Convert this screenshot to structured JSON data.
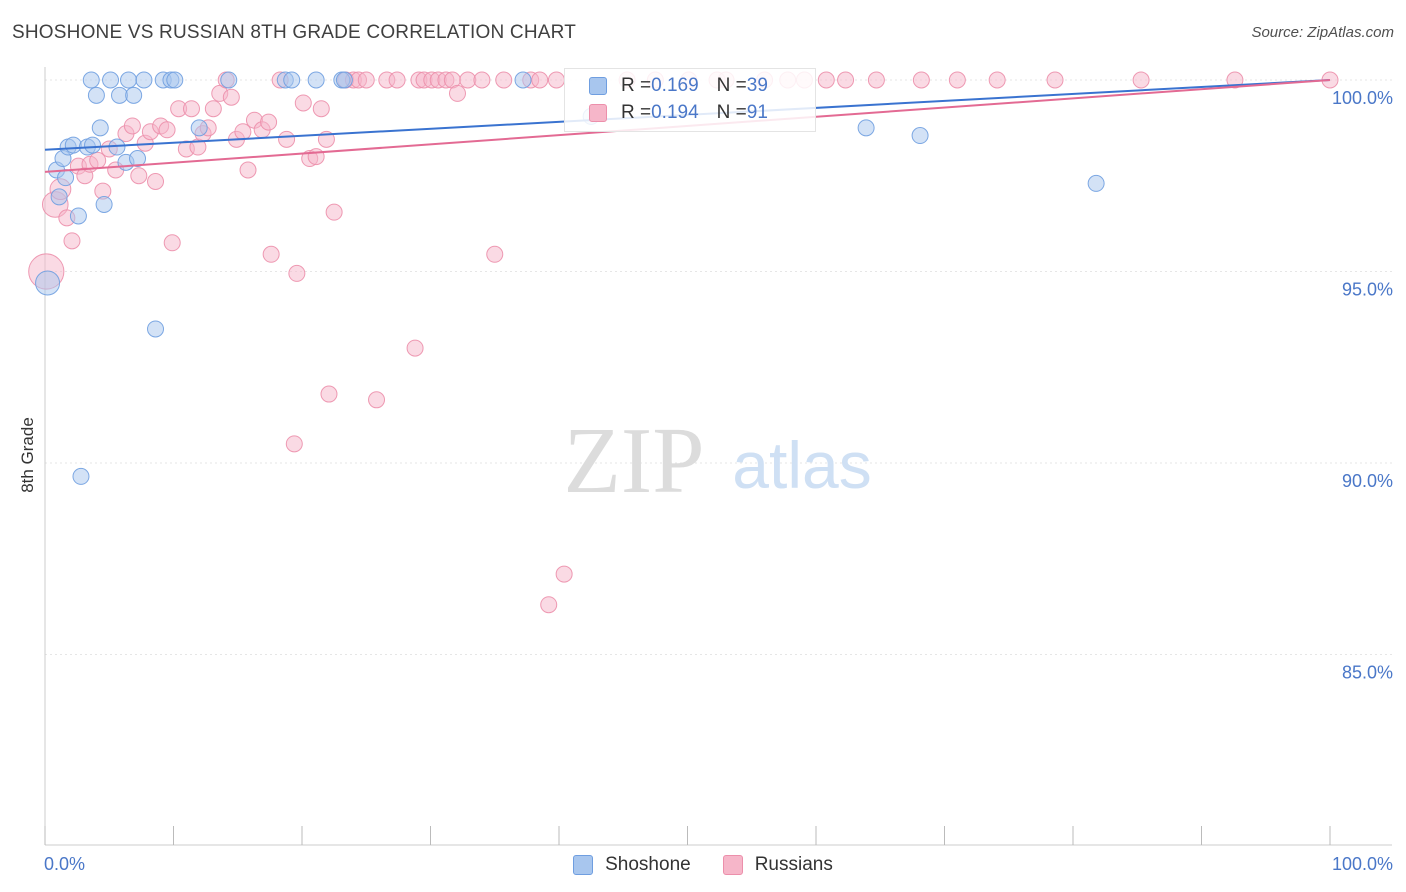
{
  "header": {
    "title": "SHOSHONE VS RUSSIAN 8TH GRADE CORRELATION CHART",
    "source": "Source: ZipAtlas.com"
  },
  "watermark": {
    "zip": "ZIP",
    "atlas": "atlas"
  },
  "colors": {
    "shoshone_fill": "#a8c6ee",
    "shoshone_stroke": "#6f9ee0",
    "shoshone_line": "#3a73d0",
    "russians_fill": "#f6b6c9",
    "russians_stroke": "#ec8fab",
    "russians_line": "#e36a93",
    "grid": "#e6e6e6",
    "axis_label": "#4a77c8"
  },
  "legend": {
    "rows": [
      {
        "r_label": "R = ",
        "r_value": "0.169",
        "n_label": "N = ",
        "n_value": "39"
      },
      {
        "r_label": "R = ",
        "r_value": "0.194",
        "n_label": "N = ",
        "n_value": "91"
      }
    ]
  },
  "bottom_legend": {
    "items": [
      "Shoshone",
      "Russians"
    ]
  },
  "chart_data": {
    "type": "scatter",
    "title": "SHOSHONE VS RUSSIAN 8TH GRADE CORRELATION CHART",
    "xlabel": "",
    "ylabel": "8th Grade",
    "xlim": [
      0,
      100
    ],
    "ylim": [
      80.5,
      100.8
    ],
    "x_tick_labels": [
      "0.0%",
      "100.0%"
    ],
    "y_ticks": [
      100,
      95,
      90,
      85
    ],
    "y_tick_labels": [
      "100.0%",
      "95.0%",
      "90.0%",
      "85.0%"
    ],
    "series": [
      {
        "name": "Shoshone",
        "r": 0.169,
        "n": 39,
        "trend": [
          [
            0,
            98.18
          ],
          [
            100,
            100.0
          ]
        ],
        "points": [
          [
            0.2,
            94.7,
            1.5
          ],
          [
            0.9,
            97.65,
            1
          ],
          [
            1.1,
            96.95,
            1
          ],
          [
            1.4,
            97.95,
            1
          ],
          [
            1.6,
            97.45,
            1
          ],
          [
            1.8,
            98.25,
            1
          ],
          [
            2.2,
            98.3,
            1
          ],
          [
            2.6,
            96.45,
            1
          ],
          [
            3.3,
            98.25,
            1
          ],
          [
            3.7,
            98.3,
            1
          ],
          [
            3.6,
            100.0,
            1
          ],
          [
            4.0,
            99.6,
            1
          ],
          [
            4.3,
            98.75,
            1
          ],
          [
            4.6,
            96.75,
            1
          ],
          [
            5.1,
            100.0,
            1
          ],
          [
            5.6,
            98.25,
            1
          ],
          [
            5.8,
            99.6,
            1
          ],
          [
            6.3,
            97.85,
            1
          ],
          [
            6.5,
            100.0,
            1
          ],
          [
            6.9,
            99.6,
            1
          ],
          [
            7.2,
            97.95,
            1
          ],
          [
            7.7,
            100.0,
            1
          ],
          [
            9.2,
            100.0,
            1
          ],
          [
            9.8,
            100.0,
            1
          ],
          [
            10.1,
            100.0,
            1
          ],
          [
            8.6,
            93.5,
            1
          ],
          [
            2.8,
            89.65,
            1
          ],
          [
            12.0,
            98.75,
            1
          ],
          [
            14.3,
            100.0,
            1
          ],
          [
            18.7,
            100.0,
            1
          ],
          [
            19.2,
            100.0,
            1
          ],
          [
            21.1,
            100.0,
            1
          ],
          [
            23.1,
            100.0,
            1
          ],
          [
            23.3,
            100.0,
            1
          ],
          [
            37.2,
            100.0,
            1
          ],
          [
            42.5,
            99.05,
            1
          ],
          [
            63.9,
            98.75,
            1
          ],
          [
            68.1,
            98.55,
            1
          ],
          [
            81.8,
            97.3,
            1
          ]
        ]
      },
      {
        "name": "Russians",
        "r": 0.194,
        "n": 91,
        "trend": [
          [
            0,
            97.6
          ],
          [
            100,
            100.0
          ]
        ],
        "points": [
          [
            0.1,
            95.0,
            2.2
          ],
          [
            0.8,
            96.75,
            1.6
          ],
          [
            1.2,
            97.15,
            1.3
          ],
          [
            1.7,
            96.4,
            1
          ],
          [
            2.1,
            95.8,
            1
          ],
          [
            2.6,
            97.75,
            1
          ],
          [
            3.1,
            97.5,
            1
          ],
          [
            3.5,
            97.8,
            1
          ],
          [
            4.1,
            97.9,
            1
          ],
          [
            4.5,
            97.1,
            1
          ],
          [
            5.0,
            98.2,
            1
          ],
          [
            5.5,
            97.65,
            1
          ],
          [
            6.3,
            98.6,
            1
          ],
          [
            6.8,
            98.8,
            1
          ],
          [
            7.3,
            97.5,
            1
          ],
          [
            7.8,
            98.35,
            1
          ],
          [
            8.2,
            98.65,
            1
          ],
          [
            8.6,
            97.35,
            1
          ],
          [
            9.0,
            98.8,
            1
          ],
          [
            9.5,
            98.7,
            1
          ],
          [
            9.9,
            95.75,
            1
          ],
          [
            10.4,
            99.25,
            1
          ],
          [
            11.0,
            98.2,
            1
          ],
          [
            11.4,
            99.25,
            1
          ],
          [
            11.9,
            98.25,
            1
          ],
          [
            12.3,
            98.6,
            1
          ],
          [
            12.7,
            98.75,
            1
          ],
          [
            13.1,
            99.25,
            1
          ],
          [
            13.6,
            99.65,
            1
          ],
          [
            14.1,
            100.0,
            1
          ],
          [
            14.5,
            99.55,
            1
          ],
          [
            14.9,
            98.45,
            1
          ],
          [
            15.4,
            98.65,
            1
          ],
          [
            15.8,
            97.65,
            1
          ],
          [
            16.3,
            98.95,
            1
          ],
          [
            16.9,
            98.7,
            1
          ],
          [
            17.4,
            98.9,
            1
          ],
          [
            17.6,
            95.45,
            1
          ],
          [
            18.3,
            100.0,
            1
          ],
          [
            18.8,
            98.45,
            1
          ],
          [
            19.4,
            90.5,
            1
          ],
          [
            19.6,
            94.95,
            1
          ],
          [
            20.1,
            99.4,
            1
          ],
          [
            20.6,
            97.95,
            1
          ],
          [
            21.1,
            98.0,
            1
          ],
          [
            21.5,
            99.25,
            1
          ],
          [
            21.9,
            98.45,
            1
          ],
          [
            22.5,
            96.55,
            1
          ],
          [
            22.1,
            91.8,
            1
          ],
          [
            23.4,
            100.0,
            1
          ],
          [
            24.0,
            100.0,
            1
          ],
          [
            24.4,
            100.0,
            1
          ],
          [
            25.0,
            100.0,
            1
          ],
          [
            25.8,
            91.65,
            1
          ],
          [
            26.6,
            100.0,
            1
          ],
          [
            27.4,
            100.0,
            1
          ],
          [
            28.8,
            93.0,
            1
          ],
          [
            29.1,
            100.0,
            1
          ],
          [
            29.5,
            100.0,
            1
          ],
          [
            30.1,
            100.0,
            1
          ],
          [
            30.6,
            100.0,
            1
          ],
          [
            31.2,
            100.0,
            1
          ],
          [
            31.7,
            100.0,
            1
          ],
          [
            32.1,
            99.65,
            1
          ],
          [
            32.9,
            100.0,
            1
          ],
          [
            34.0,
            100.0,
            1
          ],
          [
            35.0,
            95.45,
            1
          ],
          [
            35.7,
            100.0,
            1
          ],
          [
            37.8,
            100.0,
            1
          ],
          [
            38.5,
            100.0,
            1
          ],
          [
            39.2,
            86.3,
            1
          ],
          [
            39.8,
            100.0,
            1
          ],
          [
            40.4,
            87.1,
            1
          ],
          [
            45.3,
            100.0,
            1
          ],
          [
            47.5,
            100.0,
            1
          ],
          [
            50.1,
            100.0,
            1
          ],
          [
            52.3,
            100.0,
            1
          ],
          [
            53.0,
            100.0,
            1
          ],
          [
            56.0,
            100.0,
            1
          ],
          [
            57.8,
            100.0,
            1
          ],
          [
            59.1,
            100.0,
            1
          ],
          [
            60.8,
            100.0,
            1
          ],
          [
            62.3,
            100.0,
            1
          ],
          [
            64.7,
            100.0,
            1
          ],
          [
            68.2,
            100.0,
            1
          ],
          [
            71.0,
            100.0,
            1
          ],
          [
            74.1,
            100.0,
            1
          ],
          [
            78.6,
            100.0,
            1
          ],
          [
            85.3,
            100.0,
            1
          ],
          [
            92.6,
            100.0,
            1
          ],
          [
            100.0,
            100.0,
            1
          ]
        ]
      }
    ]
  }
}
